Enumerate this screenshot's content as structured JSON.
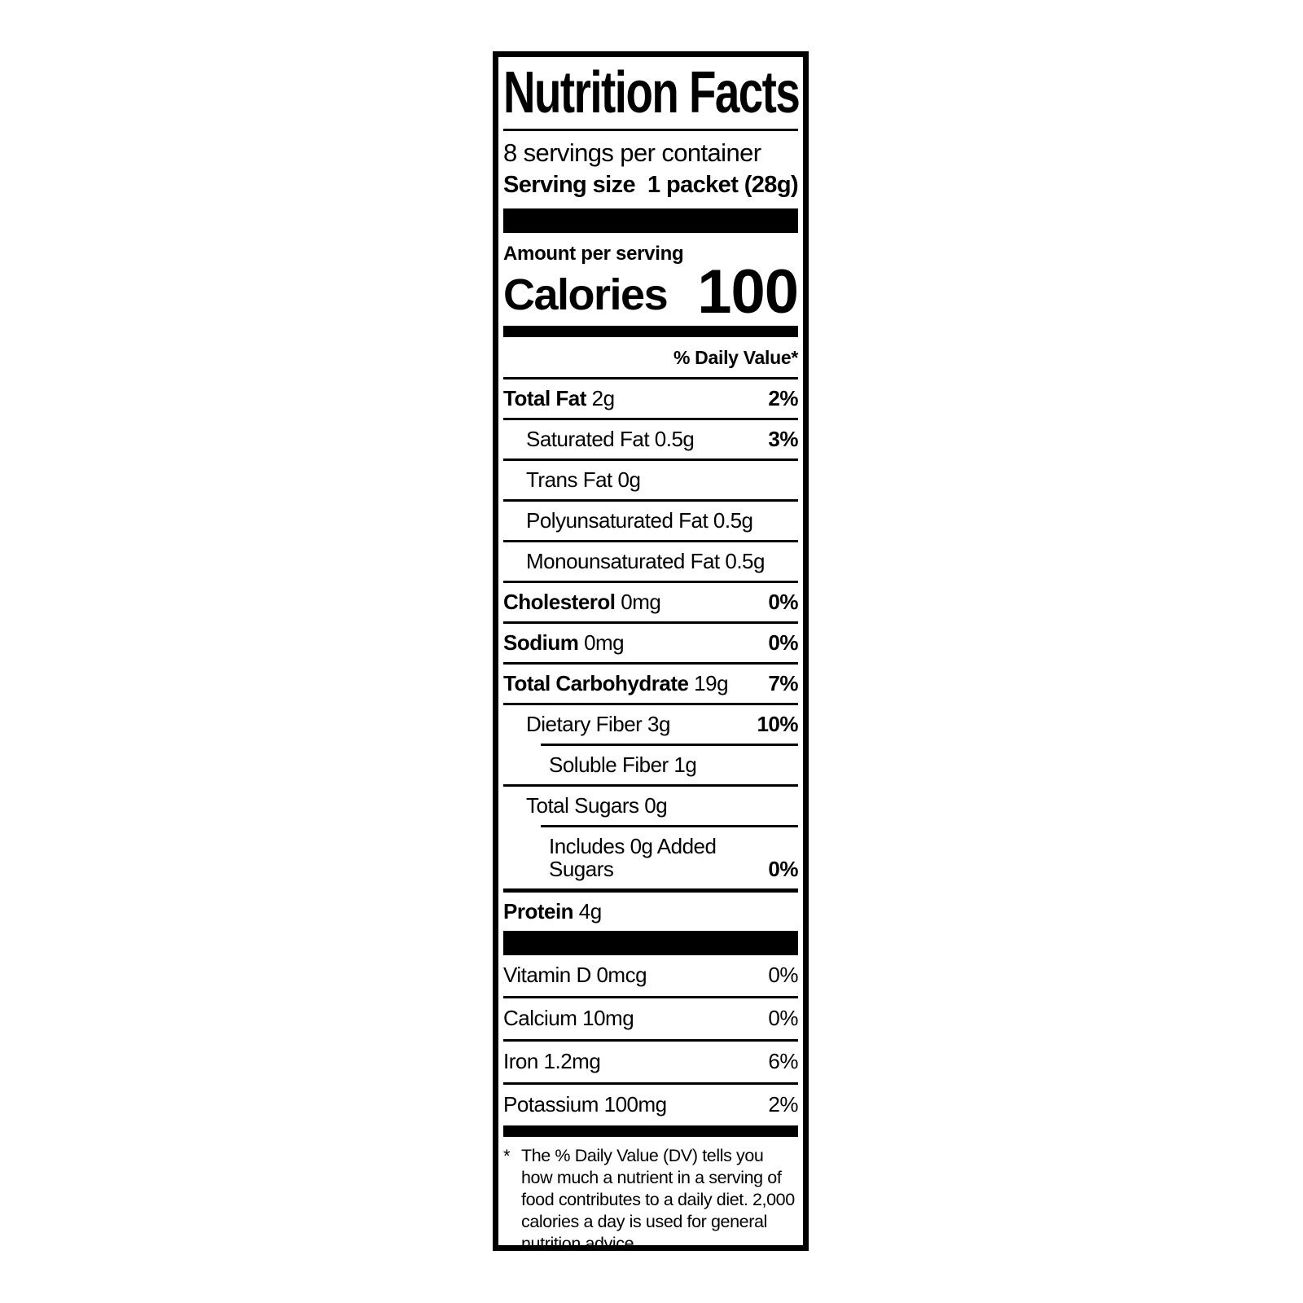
{
  "label": {
    "title": "Nutrition Facts",
    "servings_per_container": "8 servings per container",
    "serving_size_label": "Serving size",
    "serving_size_value": "1 packet (28g)",
    "amount_per_serving": "Amount per serving",
    "calories_label": "Calories",
    "calories_value": "100",
    "daily_value_header": "% Daily Value*",
    "nutrients": [
      {
        "name": "Total Fat",
        "amount": "2g",
        "dv": "2%",
        "bold": true,
        "indent": 0
      },
      {
        "name": "Saturated Fat",
        "amount": "0.5g",
        "dv": "3%",
        "bold": false,
        "indent": 1
      },
      {
        "name": "Trans Fat",
        "amount": "0g",
        "dv": "",
        "bold": false,
        "indent": 1
      },
      {
        "name": "Polyunsaturated Fat",
        "amount": "0.5g",
        "dv": "",
        "bold": false,
        "indent": 1
      },
      {
        "name": "Monounsaturated Fat",
        "amount": "0.5g",
        "dv": "",
        "bold": false,
        "indent": 1
      },
      {
        "name": "Cholesterol",
        "amount": "0mg",
        "dv": "0%",
        "bold": true,
        "indent": 0
      },
      {
        "name": "Sodium",
        "amount": "0mg",
        "dv": "0%",
        "bold": true,
        "indent": 0
      },
      {
        "name": "Total Carbohydrate",
        "amount": "19g",
        "dv": "7%",
        "bold": true,
        "indent": 0
      },
      {
        "name": "Dietary Fiber",
        "amount": "3g",
        "dv": "10%",
        "bold": false,
        "indent": 1
      },
      {
        "name": "Soluble Fiber",
        "amount": "1g",
        "dv": "",
        "bold": false,
        "indent": 2,
        "rule_indent": true
      },
      {
        "name": "Total Sugars",
        "amount": "0g",
        "dv": "",
        "bold": false,
        "indent": 1
      },
      {
        "name": "Includes 0g Added Sugars",
        "amount": "",
        "dv": "0%",
        "bold": false,
        "indent": 2,
        "rule_indent": true
      },
      {
        "name": "Protein",
        "amount": "4g",
        "dv": "",
        "bold": true,
        "indent": 0,
        "thick_top": true
      }
    ],
    "vitamins": [
      {
        "name": "Vitamin D",
        "amount": "0mcg",
        "dv": "0%"
      },
      {
        "name": "Calcium",
        "amount": "10mg",
        "dv": "0%"
      },
      {
        "name": "Iron",
        "amount": "1.2mg",
        "dv": "6%"
      },
      {
        "name": "Potassium",
        "amount": "100mg",
        "dv": "2%"
      }
    ],
    "footnote_marker": "*",
    "footnote": "The % Daily Value (DV) tells you how much a nutrient in a serving of food contributes to a daily diet. 2,000 calories a day is used for general nutrition advice."
  }
}
